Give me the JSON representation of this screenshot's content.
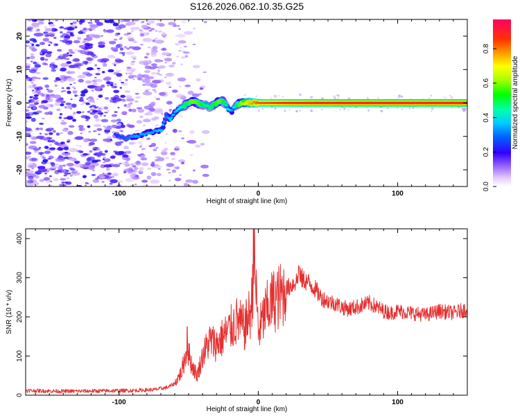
{
  "title": "S126.2026.062.10.35.G25",
  "colors": {
    "trace": "#e53030",
    "spectro_bg": "#ffffff"
  },
  "chart_data": [
    {
      "type": "heatmap",
      "name": "spectrogram",
      "xlabel": "Height of straight line (km)",
      "ylabel": "Frequency (Hz)",
      "xlim": [
        -167,
        150
      ],
      "ylim": [
        -25,
        25
      ],
      "xticks": [
        -100,
        0,
        100
      ],
      "yticks": [
        -20,
        -10,
        0,
        10,
        20
      ],
      "colorbar": {
        "label": "Normalized spectral amplitude",
        "range": [
          0,
          0.97
        ],
        "ticks": [
          "0.0",
          "0.2",
          "0.4",
          "0.6",
          "0.8"
        ],
        "tick_values": [
          0,
          0.2,
          0.4,
          0.6,
          0.8
        ]
      },
      "signal_track": {
        "height_km": [
          -103,
          -95,
          -88,
          -80,
          -74,
          -69,
          -66,
          -63,
          -60,
          -56,
          -52,
          -48,
          -45,
          -41,
          -38,
          -35,
          -32,
          -28,
          -25,
          -22,
          -19,
          -17,
          -15,
          -12,
          -8,
          -4,
          0,
          20,
          60,
          100,
          150
        ],
        "freq_hz": [
          -9.5,
          -10.5,
          -10,
          -9,
          -8.5,
          -8,
          -3.5,
          -5,
          -3,
          -1.5,
          -0.5,
          0.5,
          0.3,
          -0.5,
          -0.5,
          -1.5,
          -0.5,
          0.5,
          0.5,
          -1.5,
          -2.5,
          -1,
          -0.5,
          0,
          0,
          0,
          0,
          0,
          0,
          0,
          0
        ],
        "amplitude": [
          0.25,
          0.3,
          0.35,
          0.35,
          0.35,
          0.4,
          0.3,
          0.4,
          0.35,
          0.45,
          0.55,
          0.6,
          0.6,
          0.55,
          0.5,
          0.5,
          0.55,
          0.6,
          0.55,
          0.45,
          0.35,
          0.45,
          0.55,
          0.65,
          0.75,
          0.8,
          0.85,
          0.88,
          0.9,
          0.9,
          0.9
        ]
      },
      "noise_region_km": [
        -167,
        -55
      ]
    },
    {
      "type": "line",
      "name": "snr",
      "xlabel": "Height of straight line (km)",
      "ylabel": "SNR (10 * v/v)",
      "xlim": [
        -167,
        150
      ],
      "ylim": [
        0,
        425
      ],
      "xticks": [
        -100,
        0,
        100
      ],
      "yticks": [
        0,
        100,
        200,
        300,
        400
      ],
      "series": [
        {
          "name": "SNR",
          "envelope_x": [
            -167,
            -140,
            -110,
            -90,
            -75,
            -65,
            -60,
            -55,
            -51,
            -48,
            -44,
            -40,
            -35,
            -30,
            -25,
            -20,
            -15,
            -10,
            -5,
            -3,
            0,
            5,
            10,
            15,
            20,
            25,
            30,
            35,
            40,
            45,
            50,
            55,
            60,
            65,
            70,
            75,
            80,
            85,
            90,
            95,
            100,
            110,
            120,
            130,
            140,
            150
          ],
          "envelope_y": [
            12,
            10,
            11,
            12,
            14,
            20,
            30,
            60,
            120,
            80,
            50,
            100,
            140,
            130,
            150,
            170,
            190,
            170,
            220,
            360,
            160,
            210,
            240,
            250,
            270,
            285,
            300,
            290,
            275,
            250,
            240,
            235,
            225,
            220,
            225,
            230,
            235,
            225,
            215,
            210,
            215,
            210,
            205,
            215,
            210,
            220
          ],
          "spikes": [
            {
              "x": -51,
              "y": 175
            },
            {
              "x": -3.5,
              "y": 425
            },
            {
              "x": 29,
              "y": 330
            }
          ]
        }
      ]
    }
  ]
}
